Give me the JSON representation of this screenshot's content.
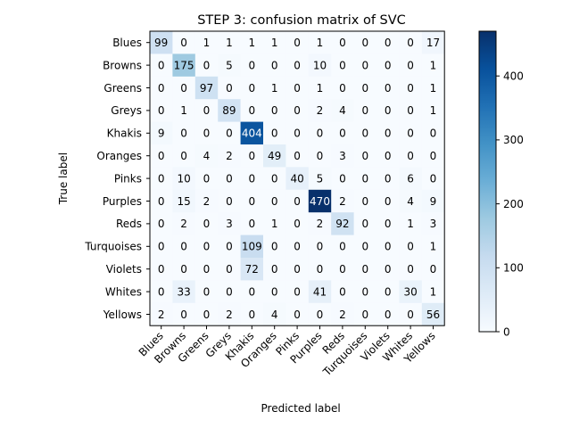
{
  "chart_data": {
    "type": "heatmap",
    "title": "STEP 3: confusion matrix of SVC",
    "xlabel": "Predicted label",
    "ylabel": "True label",
    "rows": [
      "Blues",
      "Browns",
      "Greens",
      "Greys",
      "Khakis",
      "Oranges",
      "Pinks",
      "Purples",
      "Reds",
      "Turquoises",
      "Violets",
      "Whites",
      "Yellows"
    ],
    "cols": [
      "Blues",
      "Browns",
      "Greens",
      "Greys",
      "Khakis",
      "Oranges",
      "Pinks",
      "Purples",
      "Reds",
      "Turquoises",
      "Violets",
      "Whites",
      "Yellows"
    ],
    "values": [
      [
        99,
        0,
        1,
        1,
        1,
        1,
        0,
        1,
        0,
        0,
        0,
        0,
        17
      ],
      [
        0,
        175,
        0,
        5,
        0,
        0,
        0,
        10,
        0,
        0,
        0,
        0,
        1
      ],
      [
        0,
        0,
        97,
        0,
        0,
        1,
        0,
        1,
        0,
        0,
        0,
        0,
        1
      ],
      [
        0,
        1,
        0,
        89,
        0,
        0,
        0,
        2,
        4,
        0,
        0,
        0,
        1
      ],
      [
        9,
        0,
        0,
        0,
        404,
        0,
        0,
        0,
        0,
        0,
        0,
        0,
        0
      ],
      [
        0,
        0,
        4,
        2,
        0,
        49,
        0,
        0,
        3,
        0,
        0,
        0,
        0
      ],
      [
        0,
        10,
        0,
        0,
        0,
        0,
        40,
        5,
        0,
        0,
        0,
        6,
        0
      ],
      [
        0,
        15,
        2,
        0,
        0,
        0,
        0,
        470,
        2,
        0,
        0,
        4,
        9
      ],
      [
        0,
        2,
        0,
        3,
        0,
        1,
        0,
        2,
        92,
        0,
        0,
        1,
        3
      ],
      [
        0,
        0,
        0,
        0,
        109,
        0,
        0,
        0,
        0,
        0,
        0,
        0,
        1
      ],
      [
        0,
        0,
        0,
        0,
        72,
        0,
        0,
        0,
        0,
        0,
        0,
        0,
        0
      ],
      [
        0,
        33,
        0,
        0,
        0,
        0,
        0,
        41,
        0,
        0,
        0,
        30,
        1
      ],
      [
        2,
        0,
        0,
        2,
        0,
        4,
        0,
        0,
        2,
        0,
        0,
        0,
        56
      ]
    ],
    "colormap": "Blues",
    "vmin": 0,
    "vmax": 470,
    "colorbar_ticks": [
      0,
      100,
      200,
      300,
      400
    ],
    "text_color_dark": "#000000",
    "text_color_light": "#ffffff"
  }
}
